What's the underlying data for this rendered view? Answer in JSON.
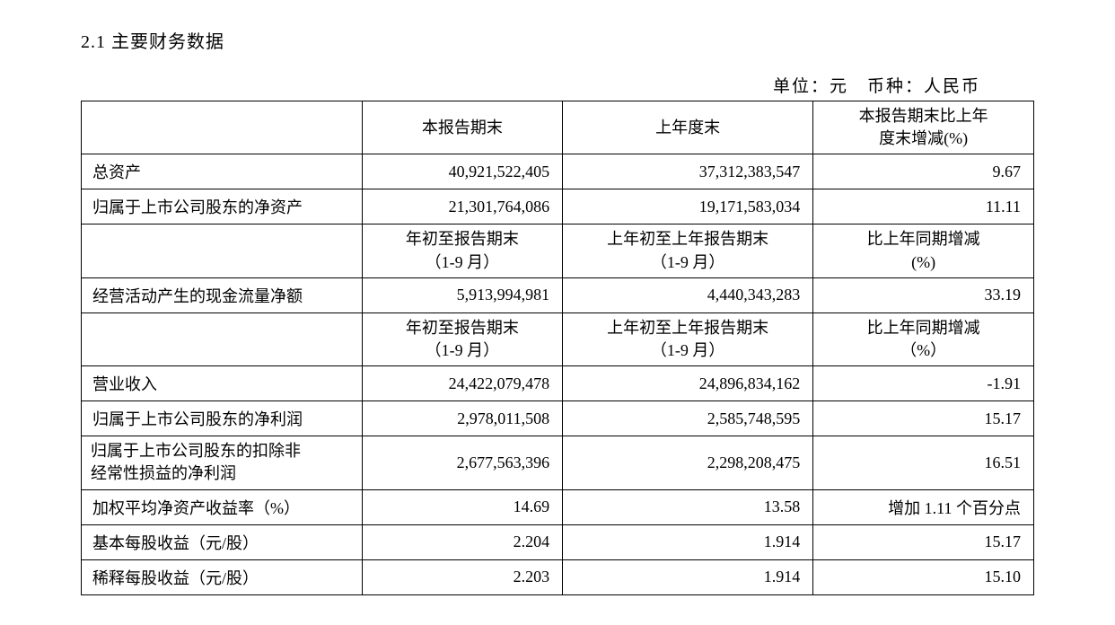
{
  "section_title": "2.1 主要财务数据",
  "unit_line": "单位：元　币种：人民币",
  "headers": {
    "h1_col2": "本报告期末",
    "h1_col3": "上年度末",
    "h1_col4_line1": "本报告期末比上年",
    "h1_col4_line2": "度末增减(%)",
    "h2_col2_line1": "年初至报告期末",
    "h2_col2_line2": "（1-9 月）",
    "h2_col3_line1": "上年初至上年报告期末",
    "h2_col3_line2": "（1-9 月）",
    "h2_col4_line1": "比上年同期增减",
    "h2_col4_line2": "(%)",
    "h3_col2_line1": "年初至报告期末",
    "h3_col2_line2": "（1-9 月）",
    "h3_col3_line1": "上年初至上年报告期末",
    "h3_col3_line2": "（1-9 月）",
    "h3_col4_line1": "比上年同期增减",
    "h3_col4_line2": "（%）"
  },
  "rows": {
    "r1": {
      "label": "总资产",
      "v1": "40,921,522,405",
      "v2": "37,312,383,547",
      "v3": "9.67"
    },
    "r2": {
      "label": "归属于上市公司股东的净资产",
      "v1": "21,301,764,086",
      "v2": "19,171,583,034",
      "v3": "11.11"
    },
    "r3": {
      "label": "经营活动产生的现金流量净额",
      "v1": "5,913,994,981",
      "v2": "4,440,343,283",
      "v3": "33.19"
    },
    "r4": {
      "label": "营业收入",
      "v1": "24,422,079,478",
      "v2": "24,896,834,162",
      "v3": "-1.91"
    },
    "r5": {
      "label": "归属于上市公司股东的净利润",
      "v1": "2,978,011,508",
      "v2": "2,585,748,595",
      "v3": "15.17"
    },
    "r6": {
      "label_line1": "归属于上市公司股东的扣除非",
      "label_line2": "经常性损益的净利润",
      "v1": "2,677,563,396",
      "v2": "2,298,208,475",
      "v3": "16.51"
    },
    "r7": {
      "label": "加权平均净资产收益率（%）",
      "v1": "14.69",
      "v2": "13.58",
      "v3": "增加 1.11 个百分点"
    },
    "r8": {
      "label": "基本每股收益（元/股）",
      "v1": "2.204",
      "v2": "1.914",
      "v3": "15.17"
    },
    "r9": {
      "label": "稀释每股收益（元/股）",
      "v1": "2.203",
      "v2": "1.914",
      "v3": "15.10"
    }
  },
  "styling": {
    "background_color": "#ffffff",
    "text_color": "#000000",
    "border_color": "#000000",
    "font_family": "SimSun",
    "base_fontsize": 18,
    "title_fontsize": 20,
    "border_width": 1.5,
    "column_widths_pct": [
      28,
      20,
      25,
      22
    ]
  }
}
